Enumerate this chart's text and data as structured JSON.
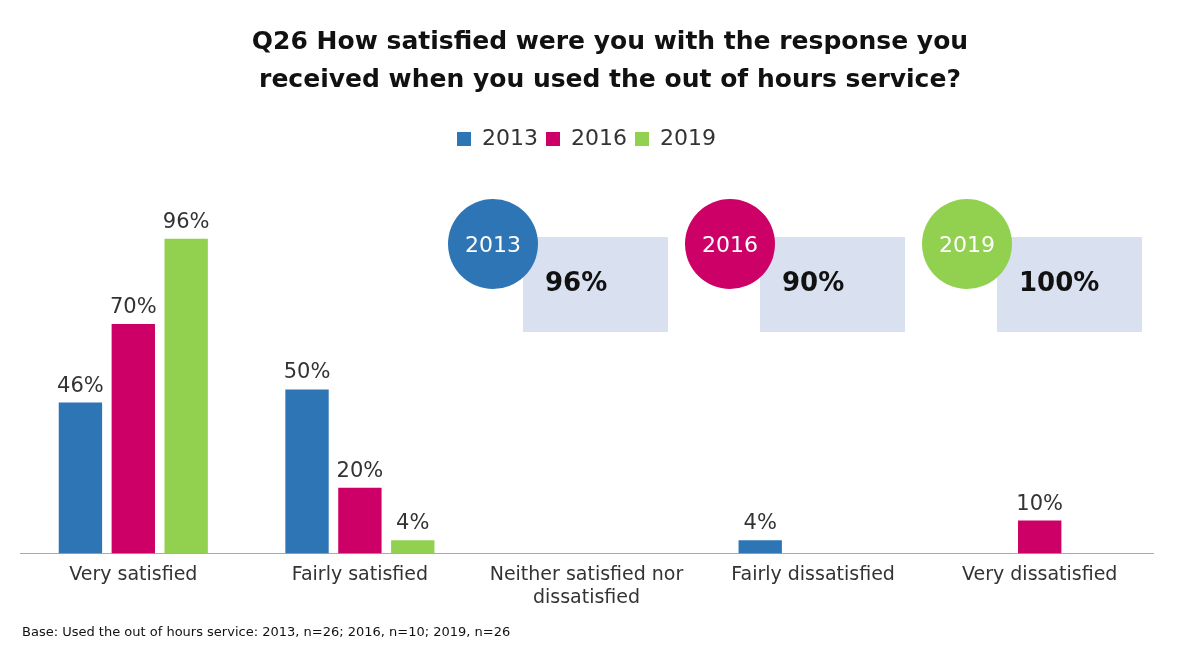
{
  "chart_data": {
    "type": "bar",
    "title": "Q26 How satisfied were you with the response you received when you used the out of hours service?",
    "categories": [
      "Very satisfied",
      "Fairly satisfied",
      "Neither satisfied nor dissatisfied",
      "Fairly dissatisfied",
      "Very dissatisfied"
    ],
    "series": [
      {
        "name": "2013",
        "color": "#2e75b6",
        "values": [
          46,
          50,
          null,
          4,
          null
        ],
        "value_labels": [
          "46%",
          "50%",
          null,
          "4%",
          null
        ]
      },
      {
        "name": "2016",
        "color": "#cc0066",
        "values": [
          70,
          20,
          null,
          null,
          10
        ],
        "value_labels": [
          "70%",
          "20%",
          null,
          null,
          "10%"
        ]
      },
      {
        "name": "2019",
        "color": "#92d050",
        "values": [
          96,
          4,
          null,
          null,
          null
        ],
        "value_labels": [
          "96%",
          "4%",
          null,
          null,
          null
        ]
      }
    ],
    "legend": "top",
    "annotations": [
      "2013",
      "96%",
      "2016",
      "90%",
      "2019",
      "100%",
      "Base:  Used the out of hours service: 2013, n=26; 2016, n=10; 2019, n=26"
    ]
  }
}
